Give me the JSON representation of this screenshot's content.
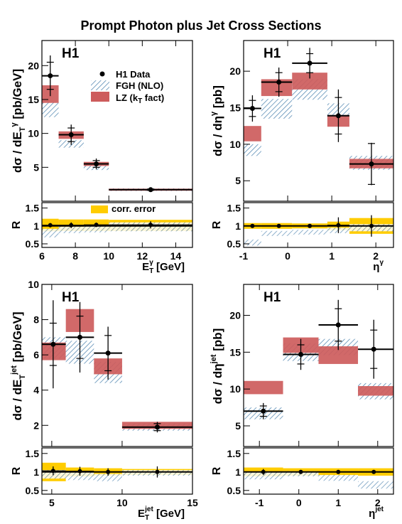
{
  "title": "Prompt Photon plus Jet Cross Sections",
  "colors": {
    "fgh_hatch": "#5b8db5",
    "lz_fill": "#cd5c5c",
    "corr_error": "#ffcc00",
    "data": "#000000"
  },
  "legend": {
    "data": "H1 Data",
    "fgh": "FGH (NLO)",
    "lz_prefix": "LZ (k",
    "lz_sub": "T",
    "lz_suffix": " fact)",
    "corr": "corr. error"
  },
  "chart_data": [
    {
      "id": "et-gamma",
      "type": "scatter",
      "label": "H1",
      "ylabel": "dσ / dE",
      "ylabel_sub": "T",
      "ylabel_sup": "γ",
      "ylabel_unit": " [pb/GeV]",
      "xlabel": "E",
      "xlabel_sub": "T",
      "xlabel_sup": "γ",
      "xlabel_unit": " [GeV]",
      "xlim": [
        6,
        15
      ],
      "ylim": [
        0,
        23.7
      ],
      "yticks": [
        "5",
        "10",
        "15",
        "20"
      ],
      "yticks_val": [
        5,
        10,
        15,
        20
      ],
      "xticks": [
        "6",
        "8",
        "10",
        "12",
        "14"
      ],
      "xticks_val": [
        6,
        8,
        10,
        12,
        14
      ],
      "bins": [
        [
          6,
          7
        ],
        [
          7,
          8.5
        ],
        [
          8.5,
          10
        ],
        [
          10,
          15
        ]
      ],
      "data": {
        "x": [
          6.5,
          7.75,
          9.25,
          12.5
        ],
        "y": [
          18.5,
          9.8,
          5.5,
          1.7
        ],
        "stat": [
          2.0,
          1.0,
          0.5,
          0.1
        ],
        "tot": [
          3.0,
          1.5,
          0.8,
          0.2
        ]
      },
      "fgh": [
        [
          12.4,
          14.6
        ],
        [
          7.9,
          9.0
        ],
        [
          4.6,
          5.4
        ],
        [
          1.5,
          1.9
        ]
      ],
      "lz": [
        [
          14.5,
          17.1
        ],
        [
          9.2,
          10.3
        ],
        [
          5.2,
          5.8
        ],
        [
          1.55,
          1.85
        ]
      ],
      "ratio": {
        "ylim": [
          0.4,
          1.65
        ],
        "yticks": [
          "0.5",
          "1",
          "1.5"
        ],
        "yticks_val": [
          0.5,
          1,
          1.5
        ],
        "data": [
          1.02,
          1.02,
          1.03,
          1.03
        ],
        "err": [
          0.06,
          0.08,
          0.06,
          0.1
        ],
        "corr": [
          [
            0.85,
            1.2
          ],
          [
            0.86,
            1.18
          ],
          [
            0.86,
            1.18
          ],
          [
            0.86,
            1.17
          ]
        ],
        "fgh": [
          [
            0.68,
            0.92
          ],
          [
            0.8,
            0.98
          ],
          [
            0.82,
            1.0
          ],
          [
            0.85,
            1.1
          ]
        ]
      }
    },
    {
      "id": "eta-gamma",
      "type": "scatter",
      "label": "H1",
      "ylabel": "dσ / dη",
      "ylabel_sub": "",
      "ylabel_sup": "γ",
      "ylabel_unit": " [pb]",
      "xlabel": "η",
      "xlabel_sub": "",
      "xlabel_sup": "γ",
      "xlabel_unit": "",
      "xlim": [
        -1,
        2.4
      ],
      "ylim": [
        2.2,
        24.2
      ],
      "yticks": [
        "5",
        "10",
        "15",
        "20"
      ],
      "yticks_val": [
        5,
        10,
        15,
        20
      ],
      "xticks": [
        "-1",
        "0",
        "1",
        "2"
      ],
      "xticks_val": [
        -1,
        0,
        1,
        2
      ],
      "bins": [
        [
          -1,
          -0.6
        ],
        [
          -0.6,
          0.1
        ],
        [
          0.1,
          0.9
        ],
        [
          0.9,
          1.4
        ],
        [
          1.4,
          2.4
        ]
      ],
      "data": {
        "x": [
          -0.8,
          -0.2,
          0.5,
          1.15,
          1.9
        ],
        "y": [
          14.9,
          18.5,
          21.1,
          13.9,
          7.3
        ],
        "stat": [
          1.1,
          1.3,
          1.3,
          2.5,
          2.8
        ],
        "tot": [
          1.8,
          2.0,
          2.1,
          3.6,
          2.9
        ]
      },
      "fgh": [
        [
          8.4,
          10.0
        ],
        [
          13.5,
          16.2
        ],
        [
          16.1,
          18.9
        ],
        [
          13.6,
          15.6
        ],
        [
          6.5,
          8.4
        ]
      ],
      "lz": [
        [
          10.4,
          12.5
        ],
        [
          16.6,
          18.9
        ],
        [
          17.5,
          19.8
        ],
        [
          12.4,
          14.0
        ],
        [
          6.7,
          8.0
        ]
      ],
      "ratio": {
        "ylim": [
          0.4,
          1.65
        ],
        "yticks": [
          "0.5",
          "1",
          "1.5"
        ],
        "yticks_val": [
          0.5,
          1,
          1.5
        ],
        "data": [
          1.0,
          1.0,
          1.0,
          1.02,
          1.0
        ],
        "err": [
          0.05,
          0.05,
          0.05,
          0.22,
          0.3
        ],
        "corr": [
          [
            0.92,
            1.08
          ],
          [
            0.92,
            1.08
          ],
          [
            0.93,
            1.07
          ],
          [
            0.88,
            1.12
          ],
          [
            0.78,
            1.22
          ]
        ],
        "fgh": [
          [
            0.45,
            0.62
          ],
          [
            0.72,
            0.86
          ],
          [
            0.76,
            0.89
          ],
          [
            0.8,
            0.95
          ],
          [
            0.85,
            1.05
          ]
        ]
      }
    },
    {
      "id": "et-jet",
      "type": "scatter",
      "label": "H1",
      "ylabel": "dσ / dE",
      "ylabel_sub": "T",
      "ylabel_sup": "jet",
      "ylabel_unit": " [pb/GeV]",
      "xlabel": "E",
      "xlabel_sub": "T",
      "xlabel_sup": "jet",
      "xlabel_unit": "  [GeV]",
      "xlim": [
        4.3,
        15
      ],
      "ylim": [
        0.8,
        10
      ],
      "yticks": [
        "2",
        "4",
        "6",
        "8",
        "10"
      ],
      "yticks_val": [
        2,
        4,
        6,
        8,
        10
      ],
      "xticks": [
        "5",
        "10",
        "15"
      ],
      "xticks_val": [
        5,
        10,
        15
      ],
      "bins": [
        [
          4.3,
          6
        ],
        [
          6,
          8
        ],
        [
          8,
          10
        ],
        [
          10,
          15
        ]
      ],
      "data": {
        "x": [
          5.1,
          7.0,
          9.0,
          12.5
        ],
        "y": [
          6.6,
          7.0,
          6.1,
          1.9
        ],
        "stat": [
          1.2,
          1.2,
          1.0,
          0.2
        ],
        "tot": [
          2.5,
          2.0,
          1.5,
          0.3
        ]
      },
      "fgh": [
        [
          5.8,
          7.0
        ],
        [
          5.5,
          6.8
        ],
        [
          4.4,
          5.6
        ],
        [
          1.7,
          2.1
        ]
      ],
      "lz": [
        [
          5.7,
          6.7
        ],
        [
          7.3,
          8.6
        ],
        [
          4.9,
          5.8
        ],
        [
          1.8,
          2.2
        ]
      ],
      "ratio": {
        "ylim": [
          0.4,
          1.65
        ],
        "yticks": [
          "0.5",
          "1",
          "1.5"
        ],
        "yticks_val": [
          0.5,
          1,
          1.5
        ],
        "data": [
          1.03,
          1.02,
          1.0,
          1.0
        ],
        "err": [
          0.12,
          0.12,
          0.1,
          0.15
        ],
        "corr": [
          [
            0.75,
            1.25
          ],
          [
            0.88,
            1.12
          ],
          [
            0.9,
            1.1
          ],
          [
            0.92,
            1.08
          ]
        ],
        "fgh": [
          [
            0.82,
            1.05
          ],
          [
            0.78,
            1.0
          ],
          [
            0.75,
            0.95
          ],
          [
            0.9,
            1.05
          ]
        ]
      }
    },
    {
      "id": "eta-jet",
      "type": "scatter",
      "label": "H1",
      "ylabel": "dσ / dη",
      "ylabel_sub": "",
      "ylabel_sup": "jet",
      "ylabel_unit": " [pb]",
      "xlabel": "η",
      "xlabel_sub": "",
      "xlabel_sup": "jet",
      "xlabel_unit": "",
      "xlim": [
        -1.4,
        2.4
      ],
      "ylim": [
        2.2,
        24.2
      ],
      "yticks": [
        "5",
        "10",
        "15",
        "20"
      ],
      "yticks_val": [
        5,
        10,
        15,
        20
      ],
      "xticks": [
        "-1",
        "0",
        "1",
        "2"
      ],
      "xticks_val": [
        -1,
        0,
        1,
        2
      ],
      "bins": [
        [
          -1.4,
          -0.4
        ],
        [
          -0.4,
          0.5
        ],
        [
          0.5,
          1.5
        ],
        [
          1.5,
          2.4
        ]
      ],
      "data": {
        "x": [
          -0.9,
          0.05,
          1.0,
          1.9
        ],
        "y": [
          7.0,
          14.7,
          18.7,
          15.4
        ],
        "stat": [
          0.7,
          1.3,
          2.2,
          2.6
        ],
        "tot": [
          1.1,
          2.1,
          3.4,
          4.0
        ]
      },
      "fgh": [
        [
          5.9,
          7.5
        ],
        [
          13.8,
          16.2
        ],
        [
          14.6,
          16.8
        ],
        [
          8.6,
          10.8
        ]
      ],
      "lz": [
        [
          9.3,
          11.1
        ],
        [
          14.9,
          17.0
        ],
        [
          13.4,
          15.8
        ],
        [
          9.1,
          10.4
        ]
      ],
      "ratio": {
        "ylim": [
          0.4,
          1.65
        ],
        "yticks": [
          "0.5",
          "1",
          "1.5"
        ],
        "yticks_val": [
          0.5,
          1,
          1.5
        ],
        "data": [
          1.0,
          1.0,
          1.0,
          1.0
        ],
        "err": [
          0.08,
          0.05,
          0.05,
          0.05
        ],
        "corr": [
          [
            0.88,
            1.12
          ],
          [
            0.9,
            1.1
          ],
          [
            0.9,
            1.1
          ],
          [
            0.9,
            1.1
          ]
        ],
        "fgh": [
          [
            0.8,
            1.0
          ],
          [
            0.88,
            1.02
          ],
          [
            0.76,
            0.92
          ],
          [
            0.55,
            0.75
          ]
        ]
      }
    }
  ]
}
